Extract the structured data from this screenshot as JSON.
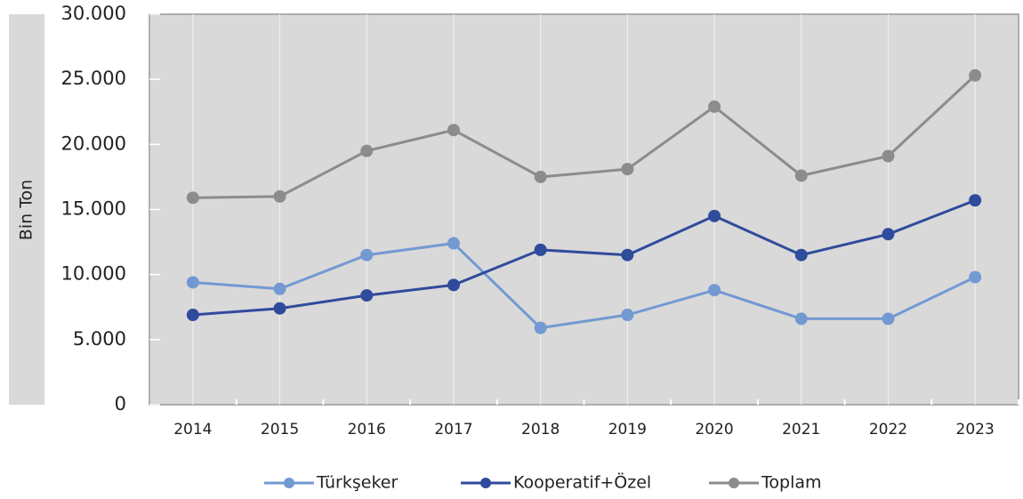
{
  "chart_data": {
    "type": "line",
    "y_label": "Bin Ton",
    "categories": [
      "2014",
      "2015",
      "2016",
      "2017",
      "2018",
      "2019",
      "2020",
      "2021",
      "2022",
      "2023"
    ],
    "series": [
      {
        "name": "Türkşeker",
        "color": "#7399d2",
        "values": [
          9400,
          8900,
          11500,
          12400,
          5900,
          6900,
          8800,
          6600,
          6600,
          9800
        ]
      },
      {
        "name": "Kooperatif+Özel",
        "color": "#2f4b9c",
        "values": [
          6900,
          7400,
          8400,
          9200,
          11900,
          11500,
          14500,
          11500,
          13100,
          15700
        ]
      },
      {
        "name": "Toplam",
        "color": "#8c8c8c",
        "values": [
          15900,
          16000,
          19500,
          21100,
          17500,
          18100,
          22900,
          17600,
          19100,
          25300
        ]
      }
    ],
    "ylim": [
      0,
      30000
    ],
    "yticks": [
      {
        "value": 0,
        "label": "0"
      },
      {
        "value": 5000,
        "label": "5.000"
      },
      {
        "value": 10000,
        "label": "10.000"
      },
      {
        "value": 15000,
        "label": "15.000"
      },
      {
        "value": 20000,
        "label": "20.000"
      },
      {
        "value": 25000,
        "label": "25.000"
      },
      {
        "value": 30000,
        "label": "30.000"
      }
    ],
    "grid": true
  }
}
